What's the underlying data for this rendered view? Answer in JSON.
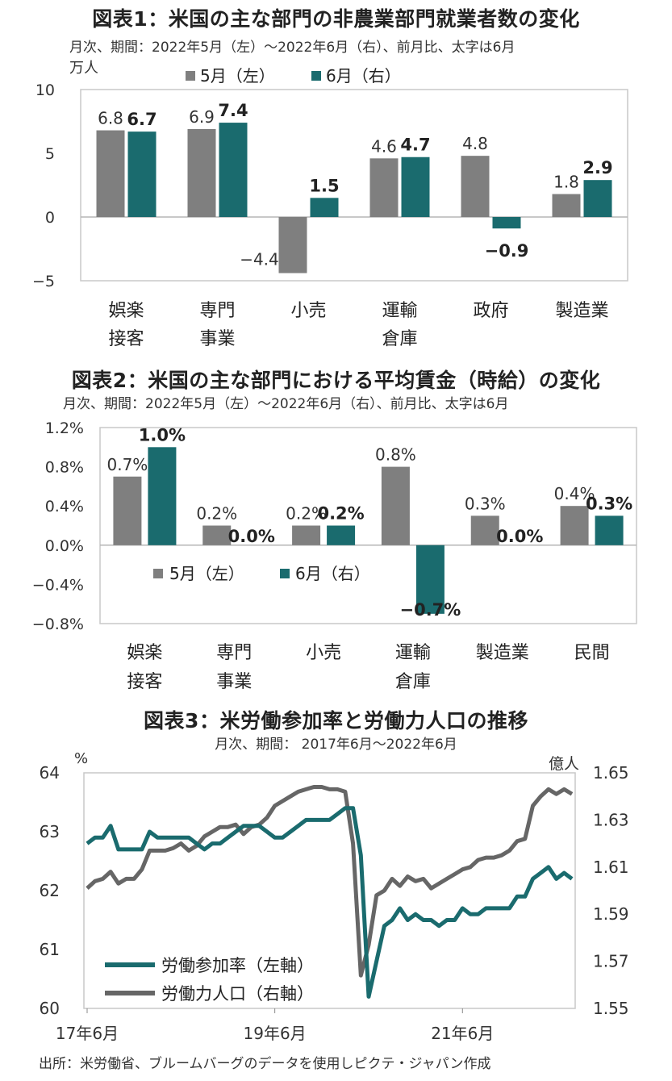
{
  "chart1": {
    "title": "図表1：米国の主な部門の非農業部門就業者数の変化",
    "subtitle": "月次、期間：2022年5月（左）～2022年6月（右）、前月比、太字は6月",
    "unit": "万人",
    "legend": [
      "5月（左）",
      "6月（右）"
    ],
    "colors": {
      "may": "#7f7f7f",
      "jun": "#1a6b6e"
    }
  },
  "chart2": {
    "title": "図表2：米国の主な部門における平均賃金（時給）の変化",
    "subtitle": "月次、期間：2022年5月（左）～2022年6月（右）、前月比、太字は6月",
    "legend": [
      "5月（左）",
      "6月（右）"
    ]
  },
  "chart3": {
    "title": "図表3：米労働参加率と労働力人口の推移",
    "subtitle": "月次、期間： 2017年6月～2022年6月",
    "left_unit": "%",
    "right_unit": "億人",
    "legend": [
      "労働参加率（左軸）",
      "労働力人口（右軸）"
    ],
    "colors": {
      "participation": "#1a6b6e",
      "labor_force": "#666666"
    }
  },
  "source": "出所：米労働省、ブルームバーグのデータを使用しピクテ・ジャパン作成",
  "chart_data": [
    {
      "type": "bar",
      "title": "図表1：米国の主な部門の非農業部門就業者数の変化",
      "categories": [
        [
          "娯楽",
          "接客"
        ],
        [
          "専門",
          "事業"
        ],
        [
          "小売"
        ],
        [
          "運輸",
          "倉庫"
        ],
        [
          "政府"
        ],
        [
          "製造業"
        ]
      ],
      "series": [
        {
          "name": "5月（左）",
          "values": [
            6.8,
            6.9,
            -4.4,
            4.6,
            4.8,
            1.8
          ],
          "labels": [
            "6.8",
            "6.9",
            "−4.4",
            "4.6",
            "4.8",
            "1.8"
          ]
        },
        {
          "name": "6月（右）",
          "values": [
            6.7,
            7.4,
            1.5,
            4.7,
            -0.9,
            2.9
          ],
          "labels": [
            "6.7",
            "7.4",
            "1.5",
            "4.7",
            "−0.9",
            "2.9"
          ]
        }
      ],
      "ylim": [
        -5,
        10
      ],
      "yticks": [
        10,
        5,
        0,
        -5
      ],
      "ytick_labels": [
        "10",
        "5",
        "0",
        "−5"
      ],
      "ylabel": "万人"
    },
    {
      "type": "bar",
      "title": "図表2：米国の主な部門における平均賃金（時給）の変化",
      "categories": [
        [
          "娯楽",
          "接客"
        ],
        [
          "専門",
          "事業"
        ],
        [
          "小売"
        ],
        [
          "運輸",
          "倉庫"
        ],
        [
          "製造業"
        ],
        [
          "民間"
        ]
      ],
      "series": [
        {
          "name": "5月（左）",
          "values": [
            0.7,
            0.2,
            0.2,
            0.8,
            0.3,
            0.4
          ],
          "labels": [
            "0.7%",
            "0.2%",
            "0.2%",
            "0.8%",
            "0.3%",
            "0.4%"
          ]
        },
        {
          "name": "6月（右）",
          "values": [
            1.0,
            0.0,
            0.2,
            -0.7,
            0.0,
            0.3
          ],
          "labels": [
            "1.0%",
            "0.0%",
            "0.2%",
            "−0.7%",
            "0.0%",
            "0.3%"
          ]
        }
      ],
      "ylim": [
        -0.8,
        1.2
      ],
      "yticks": [
        1.2,
        0.8,
        0.4,
        0.0,
        -0.4,
        -0.8
      ],
      "ytick_labels": [
        "1.2%",
        "0.8%",
        "0.4%",
        "0.0%",
        "−0.4%",
        "−0.8%"
      ]
    },
    {
      "type": "line",
      "title": "図表3：米労働参加率と労働力人口の推移",
      "x_start": "2017-06",
      "x_end": "2022-06",
      "xtick_labels": [
        "17年6月",
        "19年6月",
        "21年6月"
      ],
      "xtick_dates": [
        "2017-06",
        "2019-06",
        "2021-06"
      ],
      "left_ylim": [
        60,
        64
      ],
      "left_yticks": [
        64,
        63,
        62,
        61,
        60
      ],
      "right_ylim": [
        1.55,
        1.65
      ],
      "right_yticks": [
        "1.65",
        "1.63",
        "1.61",
        "1.59",
        "1.57",
        "1.55"
      ],
      "series": [
        {
          "name": "労働参加率（左軸）",
          "axis": "left",
          "values": [
            62.8,
            62.9,
            62.9,
            63.1,
            62.7,
            62.7,
            62.7,
            62.7,
            63.0,
            62.9,
            62.9,
            62.9,
            62.9,
            62.9,
            62.8,
            62.7,
            62.8,
            62.8,
            62.9,
            63.0,
            63.1,
            63.1,
            63.1,
            63.0,
            62.9,
            62.9,
            63.0,
            63.1,
            63.2,
            63.2,
            63.2,
            63.2,
            63.3,
            63.4,
            63.4,
            62.6,
            60.2,
            60.8,
            61.4,
            61.5,
            61.7,
            61.5,
            61.6,
            61.5,
            61.5,
            61.4,
            61.5,
            61.5,
            61.7,
            61.6,
            61.6,
            61.7,
            61.7,
            61.7,
            61.7,
            61.9,
            61.9,
            62.2,
            62.3,
            62.4,
            62.2,
            62.3,
            62.2
          ],
          "dates_start": "2017-06"
        },
        {
          "name": "労働力人口（右軸）",
          "axis": "right",
          "values": [
            1.601,
            1.604,
            1.605,
            1.608,
            1.603,
            1.605,
            1.605,
            1.609,
            1.617,
            1.617,
            1.617,
            1.618,
            1.62,
            1.617,
            1.619,
            1.623,
            1.625,
            1.627,
            1.627,
            1.628,
            1.624,
            1.627,
            1.628,
            1.631,
            1.636,
            1.638,
            1.64,
            1.642,
            1.643,
            1.644,
            1.644,
            1.643,
            1.643,
            1.642,
            1.62,
            1.564,
            1.577,
            1.598,
            1.6,
            1.605,
            1.602,
            1.606,
            1.604,
            1.605,
            1.601,
            1.603,
            1.605,
            1.607,
            1.609,
            1.61,
            1.613,
            1.614,
            1.614,
            1.615,
            1.617,
            1.621,
            1.622,
            1.636,
            1.64,
            1.643,
            1.641,
            1.643,
            1.641
          ],
          "dates_start": "2017-06"
        }
      ]
    }
  ]
}
